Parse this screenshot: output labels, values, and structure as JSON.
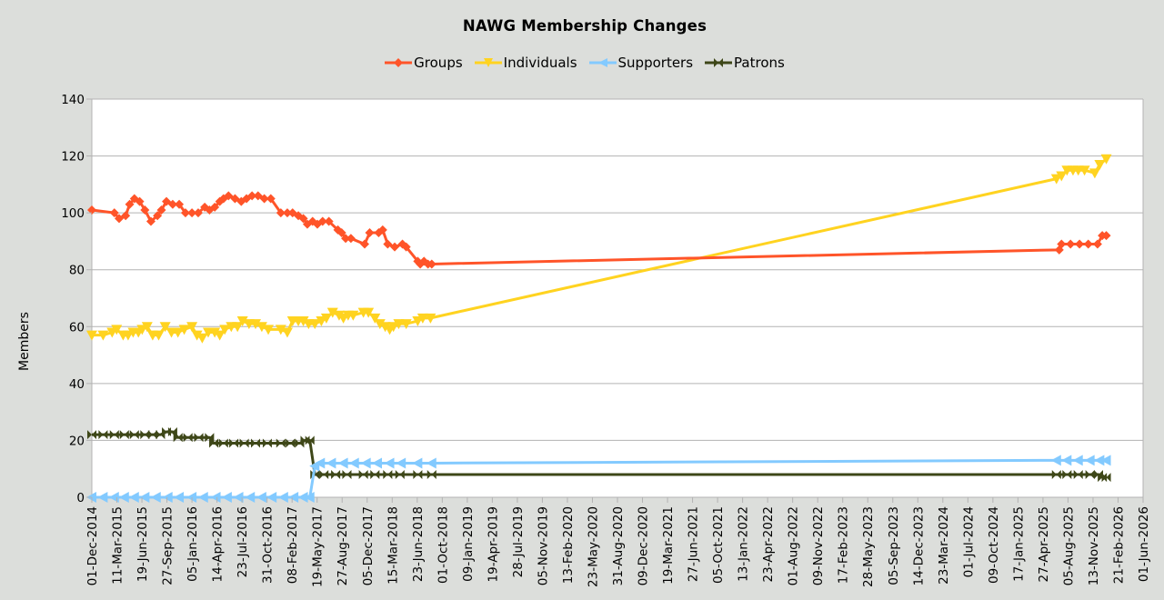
{
  "chart": {
    "title": "NAWG Membership Changes",
    "ylabel": "Members",
    "legend": [
      {
        "name": "Groups",
        "color": "#ff5429",
        "marker": "diamond-icon"
      },
      {
        "name": "Individuals",
        "color": "#ffd320",
        "marker": "triangle-down-icon"
      },
      {
        "name": "Supporters",
        "color": "#83caff",
        "marker": "triangle-left-icon"
      },
      {
        "name": "Patrons",
        "color": "#3e4718",
        "marker": "bowtie-icon"
      }
    ]
  },
  "chart_data": {
    "type": "line",
    "title": "NAWG Membership Changes",
    "xlabel": "",
    "ylabel": "Members",
    "ylim": [
      0,
      140
    ],
    "yticks": [
      0,
      20,
      40,
      60,
      80,
      100,
      120,
      140
    ],
    "grid": true,
    "legend_position": "top",
    "xaxis_type": "date",
    "xlim": [
      "01-Dec-2014",
      "01-Jun-2026"
    ],
    "xtick_labels": [
      "01-Dec-2014",
      "11-Mar-2015",
      "19-Jun-2015",
      "27-Sep-2015",
      "05-Jan-2016",
      "14-Apr-2016",
      "23-Jul-2016",
      "31-Oct-2016",
      "08-Feb-2017",
      "19-May-2017",
      "27-Aug-2017",
      "05-Dec-2017",
      "15-Mar-2018",
      "23-Jun-2018",
      "01-Oct-2018",
      "09-Jan-2019",
      "19-Apr-2019",
      "28-Jul-2019",
      "05-Nov-2019",
      "13-Feb-2020",
      "23-May-2020",
      "31-Aug-2020",
      "09-Dec-2020",
      "19-Mar-2021",
      "27-Jun-2021",
      "05-Oct-2021",
      "13-Jan-2022",
      "23-Apr-2022",
      "01-Aug-2022",
      "09-Nov-2022",
      "17-Feb-2023",
      "28-May-2023",
      "05-Sep-2023",
      "14-Dec-2023",
      "23-Mar-2024",
      "01-Jul-2024",
      "09-Oct-2024",
      "17-Jan-2025",
      "27-Apr-2025",
      "05-Aug-2025",
      "13-Nov-2025",
      "21-Feb-2026",
      "01-Jun-2026"
    ],
    "series": [
      {
        "name": "Groups",
        "color": "#ff5429",
        "points": [
          [
            "2014-12-01",
            101
          ],
          [
            "2015-03-01",
            100
          ],
          [
            "2015-03-20",
            98
          ],
          [
            "2015-04-15",
            99
          ],
          [
            "2015-05-01",
            103
          ],
          [
            "2015-05-20",
            105
          ],
          [
            "2015-06-10",
            104
          ],
          [
            "2015-07-01",
            101
          ],
          [
            "2015-07-25",
            97
          ],
          [
            "2015-08-20",
            99
          ],
          [
            "2015-09-05",
            101
          ],
          [
            "2015-09-25",
            104
          ],
          [
            "2015-10-20",
            103
          ],
          [
            "2015-11-15",
            103
          ],
          [
            "2015-12-10",
            100
          ],
          [
            "2016-01-05",
            100
          ],
          [
            "2016-01-30",
            100
          ],
          [
            "2016-02-25",
            102
          ],
          [
            "2016-03-15",
            101
          ],
          [
            "2016-04-05",
            102
          ],
          [
            "2016-04-25",
            104
          ],
          [
            "2016-05-10",
            105
          ],
          [
            "2016-05-30",
            106
          ],
          [
            "2016-06-25",
            105
          ],
          [
            "2016-07-20",
            104
          ],
          [
            "2016-08-10",
            105
          ],
          [
            "2016-09-01",
            106
          ],
          [
            "2016-09-25",
            106
          ],
          [
            "2016-10-20",
            105
          ],
          [
            "2016-11-15",
            105
          ],
          [
            "2016-12-25",
            100
          ],
          [
            "2017-01-20",
            100
          ],
          [
            "2017-02-10",
            100
          ],
          [
            "2017-03-05",
            99
          ],
          [
            "2017-03-25",
            98
          ],
          [
            "2017-04-10",
            96
          ],
          [
            "2017-05-01",
            97
          ],
          [
            "2017-05-20",
            96
          ],
          [
            "2017-06-10",
            97
          ],
          [
            "2017-07-05",
            97
          ],
          [
            "2017-08-10",
            94
          ],
          [
            "2017-08-25",
            93
          ],
          [
            "2017-09-10",
            91
          ],
          [
            "2017-10-01",
            91
          ],
          [
            "2017-11-25",
            89
          ],
          [
            "2017-12-15",
            93
          ],
          [
            "2018-01-20",
            93
          ],
          [
            "2018-02-05",
            94
          ],
          [
            "2018-02-25",
            89
          ],
          [
            "2018-03-25",
            88
          ],
          [
            "2018-04-25",
            89
          ],
          [
            "2018-05-10",
            88
          ],
          [
            "2018-06-25",
            83
          ],
          [
            "2018-07-05",
            82
          ],
          [
            "2018-07-20",
            83
          ],
          [
            "2018-08-05",
            82
          ],
          [
            "2018-08-20",
            82
          ],
          [
            "2025-07-01",
            87
          ],
          [
            "2025-07-10",
            89
          ],
          [
            "2025-08-15",
            89
          ],
          [
            "2025-09-20",
            89
          ],
          [
            "2025-10-25",
            89
          ],
          [
            "2025-12-01",
            89
          ],
          [
            "2025-12-20",
            92
          ],
          [
            "2026-01-05",
            92
          ]
        ]
      },
      {
        "name": "Individuals",
        "color": "#ffd320",
        "points": [
          [
            "2014-12-01",
            57
          ],
          [
            "2015-01-15",
            57
          ],
          [
            "2015-02-20",
            58
          ],
          [
            "2015-03-10",
            59
          ],
          [
            "2015-04-05",
            57
          ],
          [
            "2015-04-25",
            57
          ],
          [
            "2015-05-15",
            58
          ],
          [
            "2015-06-05",
            58
          ],
          [
            "2015-06-20",
            59
          ],
          [
            "2015-07-10",
            60
          ],
          [
            "2015-08-01",
            57
          ],
          [
            "2015-08-25",
            57
          ],
          [
            "2015-09-20",
            60
          ],
          [
            "2015-10-15",
            58
          ],
          [
            "2015-11-10",
            58
          ],
          [
            "2015-12-05",
            59
          ],
          [
            "2016-01-05",
            60
          ],
          [
            "2016-01-25",
            57
          ],
          [
            "2016-02-15",
            56
          ],
          [
            "2016-03-10",
            58
          ],
          [
            "2016-04-05",
            58
          ],
          [
            "2016-04-25",
            57
          ],
          [
            "2016-05-15",
            59
          ],
          [
            "2016-06-10",
            60
          ],
          [
            "2016-07-05",
            60
          ],
          [
            "2016-07-25",
            62
          ],
          [
            "2016-08-20",
            61
          ],
          [
            "2016-09-15",
            61
          ],
          [
            "2016-10-10",
            60
          ],
          [
            "2016-11-05",
            59
          ],
          [
            "2016-12-25",
            59
          ],
          [
            "2017-01-20",
            58
          ],
          [
            "2017-02-10",
            62
          ],
          [
            "2017-03-05",
            62
          ],
          [
            "2017-03-25",
            62
          ],
          [
            "2017-04-15",
            61
          ],
          [
            "2017-05-10",
            61
          ],
          [
            "2017-06-05",
            62
          ],
          [
            "2017-06-25",
            63
          ],
          [
            "2017-07-20",
            65
          ],
          [
            "2017-08-15",
            64
          ],
          [
            "2017-09-01",
            63
          ],
          [
            "2017-09-20",
            64
          ],
          [
            "2017-10-10",
            64
          ],
          [
            "2017-11-20",
            65
          ],
          [
            "2017-12-10",
            65
          ],
          [
            "2018-01-05",
            63
          ],
          [
            "2018-01-25",
            61
          ],
          [
            "2018-02-15",
            60
          ],
          [
            "2018-03-05",
            59
          ],
          [
            "2018-03-20",
            60
          ],
          [
            "2018-04-10",
            61
          ],
          [
            "2018-05-10",
            61
          ],
          [
            "2018-06-25",
            62
          ],
          [
            "2018-07-15",
            63
          ],
          [
            "2018-08-15",
            63
          ],
          [
            "2025-06-20",
            112
          ],
          [
            "2025-07-10",
            113
          ],
          [
            "2025-08-01",
            115
          ],
          [
            "2025-08-25",
            115
          ],
          [
            "2025-09-15",
            115
          ],
          [
            "2025-10-10",
            115
          ],
          [
            "2025-11-20",
            114
          ],
          [
            "2025-12-10",
            117
          ],
          [
            "2026-01-05",
            119
          ]
        ]
      },
      {
        "name": "Supporters",
        "color": "#83caff",
        "points": [
          [
            "2014-12-01",
            0
          ],
          [
            "2015-01-15",
            0
          ],
          [
            "2015-03-01",
            0
          ],
          [
            "2015-04-10",
            0
          ],
          [
            "2015-05-20",
            0
          ],
          [
            "2015-07-01",
            0
          ],
          [
            "2015-08-15",
            0
          ],
          [
            "2015-10-01",
            0
          ],
          [
            "2015-11-15",
            0
          ],
          [
            "2016-01-05",
            0
          ],
          [
            "2016-02-20",
            0
          ],
          [
            "2016-04-10",
            0
          ],
          [
            "2016-05-25",
            0
          ],
          [
            "2016-07-10",
            0
          ],
          [
            "2016-08-25",
            0
          ],
          [
            "2016-10-10",
            0
          ],
          [
            "2016-11-20",
            0
          ],
          [
            "2017-01-05",
            0
          ],
          [
            "2017-02-15",
            0
          ],
          [
            "2017-03-25",
            0
          ],
          [
            "2017-04-20",
            0
          ],
          [
            "2017-05-10",
            11
          ],
          [
            "2017-06-01",
            12
          ],
          [
            "2017-07-15",
            12
          ],
          [
            "2017-09-01",
            12
          ],
          [
            "2017-10-15",
            12
          ],
          [
            "2017-12-01",
            12
          ],
          [
            "2018-01-15",
            12
          ],
          [
            "2018-03-05",
            12
          ],
          [
            "2018-04-20",
            12
          ],
          [
            "2018-06-25",
            12
          ],
          [
            "2018-08-20",
            12
          ],
          [
            "2025-06-20",
            13
          ],
          [
            "2025-08-01",
            13
          ],
          [
            "2025-09-15",
            13
          ],
          [
            "2025-11-01",
            13
          ],
          [
            "2025-12-10",
            13
          ],
          [
            "2026-01-05",
            13
          ]
        ]
      },
      {
        "name": "Patrons",
        "color": "#3e4718",
        "points": [
          [
            "2014-12-01",
            22
          ],
          [
            "2015-01-15",
            22
          ],
          [
            "2015-03-01",
            22
          ],
          [
            "2015-04-10",
            22
          ],
          [
            "2015-05-20",
            22
          ],
          [
            "2015-07-01",
            22
          ],
          [
            "2015-08-01",
            22
          ],
          [
            "2015-09-01",
            22
          ],
          [
            "2015-09-25",
            23
          ],
          [
            "2015-10-20",
            23
          ],
          [
            "2015-11-10",
            21
          ],
          [
            "2015-12-20",
            21
          ],
          [
            "2016-02-01",
            21
          ],
          [
            "2016-03-15",
            21
          ],
          [
            "2016-04-01",
            19
          ],
          [
            "2016-05-10",
            19
          ],
          [
            "2016-06-20",
            19
          ],
          [
            "2016-08-01",
            19
          ],
          [
            "2016-09-15",
            19
          ],
          [
            "2016-11-01",
            19
          ],
          [
            "2016-12-25",
            19
          ],
          [
            "2017-02-01",
            19
          ],
          [
            "2017-03-10",
            19
          ],
          [
            "2017-04-01",
            20
          ],
          [
            "2017-04-20",
            20
          ],
          [
            "2017-05-10",
            8
          ],
          [
            "2017-06-15",
            8
          ],
          [
            "2017-08-01",
            8
          ],
          [
            "2017-09-15",
            8
          ],
          [
            "2017-11-20",
            8
          ],
          [
            "2018-01-05",
            8
          ],
          [
            "2018-02-25",
            8
          ],
          [
            "2018-04-15",
            8
          ],
          [
            "2018-06-25",
            8
          ],
          [
            "2018-08-20",
            8
          ],
          [
            "2025-06-20",
            8
          ],
          [
            "2025-08-01",
            8
          ],
          [
            "2025-09-15",
            8
          ],
          [
            "2025-11-01",
            8
          ],
          [
            "2025-12-05",
            8
          ],
          [
            "2025-12-20",
            7
          ],
          [
            "2026-01-05",
            7
          ]
        ]
      }
    ]
  }
}
